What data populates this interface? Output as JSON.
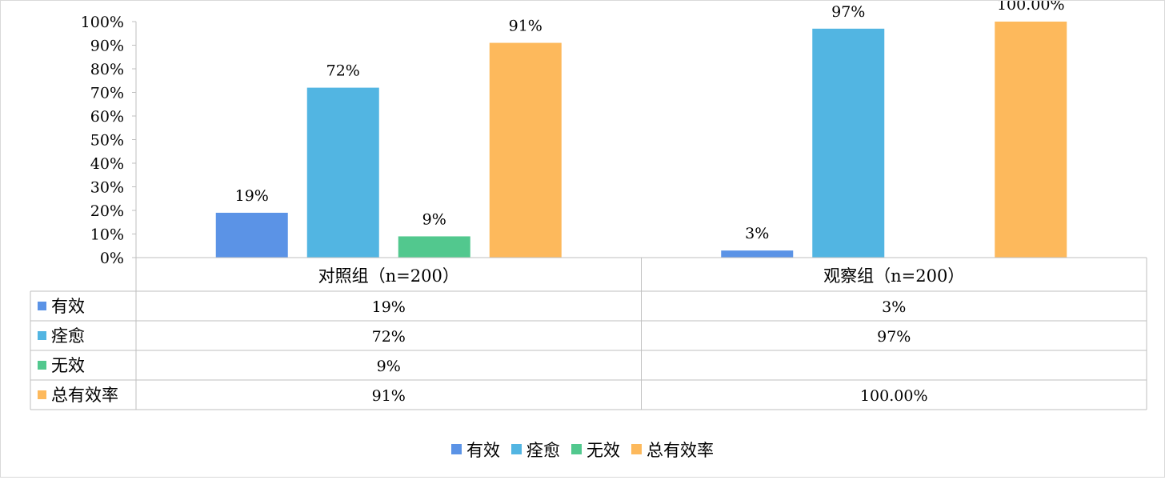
{
  "chart_data": {
    "type": "bar",
    "categories": [
      "对照组（n=200）",
      "观察组（n=200）"
    ],
    "series": [
      {
        "name": "有效",
        "values": [
          19,
          3
        ],
        "labels": [
          "19%",
          "3%"
        ],
        "color": "#5B93E6"
      },
      {
        "name": "痊愈",
        "values": [
          72,
          97
        ],
        "labels": [
          "72%",
          "97%"
        ],
        "color": "#52B5E2"
      },
      {
        "name": "无效",
        "values": [
          9,
          null
        ],
        "labels": [
          "9%",
          ""
        ],
        "color": "#52C88E"
      },
      {
        "name": "总有效率",
        "values": [
          91,
          100
        ],
        "labels": [
          "91%",
          "100.00%"
        ],
        "color": "#FDB95C"
      }
    ],
    "yticks": [
      "0%",
      "10%",
      "20%",
      "30%",
      "40%",
      "50%",
      "60%",
      "70%",
      "80%",
      "90%",
      "100%"
    ],
    "ylim": [
      0,
      100
    ],
    "grid": false,
    "legend": "bottom",
    "data_table": true
  }
}
